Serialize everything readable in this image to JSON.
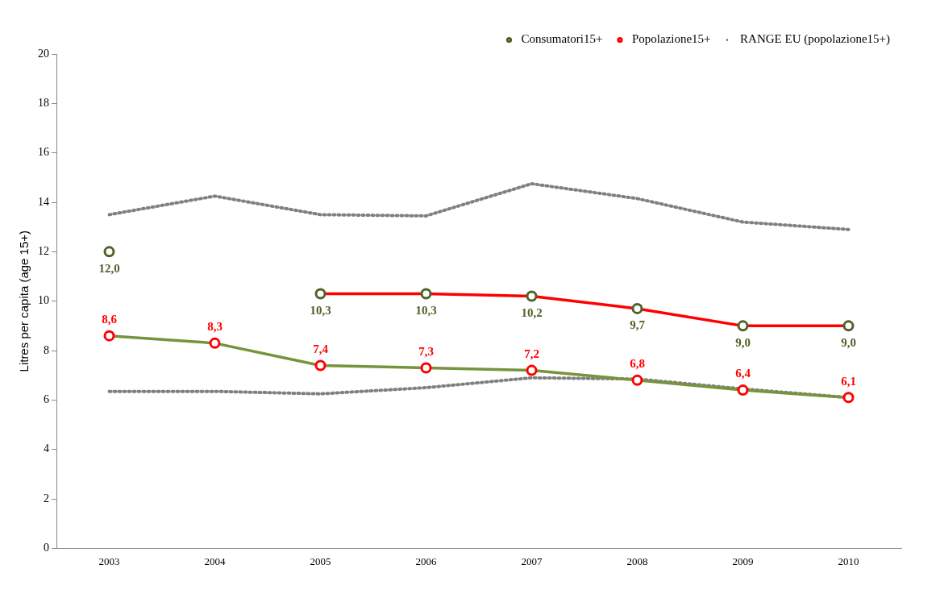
{
  "chart_data": {
    "type": "line",
    "ylabel": "Litres per capita (age 15+)",
    "categories": [
      "2003",
      "2004",
      "2005",
      "2006",
      "2007",
      "2008",
      "2009",
      "2010"
    ],
    "series": [
      {
        "name": "Consumatori15+",
        "color": "#ff0000",
        "colors": [
          "#4f6228",
          "#4f6228",
          "#4f6228",
          "#4f6228",
          "#4f6228",
          "#4f6228",
          "#4f6228",
          "#4f6228"
        ],
        "values": [
          12.0,
          null,
          10.3,
          10.3,
          10.2,
          9.7,
          9.0,
          9.0
        ],
        "value_labels": [
          "12,0",
          null,
          "10,3",
          "10,3",
          "10,2",
          "9,7",
          "9,0",
          "9,0"
        ]
      },
      {
        "name": "Popolazione15+",
        "color": "#77933c",
        "colors": [
          "#ff0000",
          "#ff0000",
          "#ff0000",
          "#ff0000",
          "#ff0000",
          "#ff0000",
          "#ff0000",
          "#ff0000"
        ],
        "values": [
          8.6,
          8.3,
          7.4,
          7.3,
          7.2,
          6.8,
          6.4,
          6.1
        ],
        "value_labels": [
          "8,6",
          "8,3",
          "7,4",
          "7,3",
          "7,2",
          "6,8",
          "6,4",
          "6,1"
        ]
      },
      {
        "name": "RANGE EU (popolazione15+)",
        "color": "#808080",
        "line_style": "dotted",
        "marker": "none",
        "values": [
          13.5,
          14.25,
          13.5,
          13.45,
          14.75,
          14.15,
          13.2,
          12.9
        ]
      },
      {
        "color": "#808080",
        "line_style": "dotted",
        "marker": "none",
        "values": [
          6.35,
          6.35,
          6.25,
          6.5,
          6.9,
          6.85,
          6.45,
          6.1
        ]
      }
    ],
    "ylim": [
      0,
      20
    ],
    "yticks": [
      0,
      2,
      4,
      6,
      8,
      10,
      12,
      14,
      16,
      18,
      20
    ],
    "grid": false,
    "legend": "top right",
    "marker": "circle",
    "line_style": "solid"
  }
}
